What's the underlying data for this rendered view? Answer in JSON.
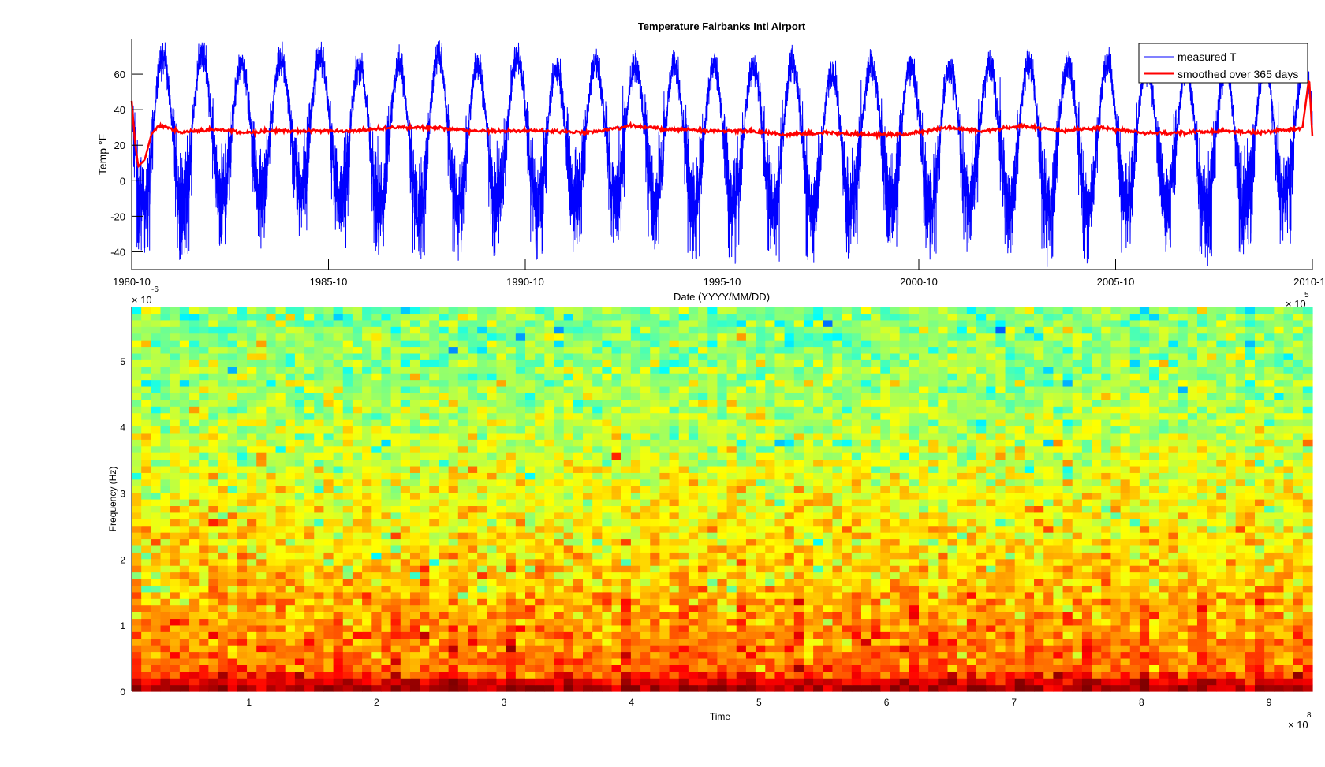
{
  "chart_data": [
    {
      "type": "line",
      "title": "Temperature Fairbanks Intl Airport",
      "xlabel": "Date (YYYY/MM/DD)",
      "ylabel": "Temp °F",
      "x_exponent_label": "× 10",
      "x_exponent": "5",
      "xlim": [
        "1980-10",
        "2010-10"
      ],
      "ylim": [
        -50,
        80
      ],
      "x_ticks": [
        "1980-10",
        "1985-10",
        "1990-10",
        "1995-10",
        "2000-10",
        "2005-10",
        "2010-10"
      ],
      "y_ticks": [
        -40,
        -20,
        0,
        20,
        40,
        60
      ],
      "y_tick_labels": [
        "-40",
        "-20",
        "0",
        "20",
        "40",
        "60"
      ],
      "grid": false,
      "legend_position": "top-right",
      "series": [
        {
          "name": "measured T",
          "color": "#0000ff",
          "summer_peaks": [
            72,
            78,
            78,
            72,
            74,
            76,
            72,
            72,
            78,
            72,
            76,
            70,
            72,
            70,
            72,
            72,
            70,
            72,
            68,
            70,
            72,
            70,
            72,
            74,
            72,
            74,
            72,
            68,
            72,
            70
          ],
          "winter_lows": [
            -40,
            -45,
            -42,
            -38,
            -30,
            -34,
            -40,
            -42,
            -46,
            -44,
            -38,
            -45,
            -36,
            -34,
            -42,
            -45,
            -40,
            -46,
            -48,
            -36,
            -40,
            -42,
            -38,
            -42,
            -44,
            -46,
            -40,
            -42,
            -44,
            -36
          ]
        },
        {
          "name": "smoothed over 365 days",
          "color": "#ff0000",
          "points": [
            [
              "1980-10",
              45
            ],
            [
              "1980-11",
              22
            ],
            [
              "1980-12",
              8
            ],
            [
              "1981-02",
              12
            ],
            [
              "1981-04",
              26
            ],
            [
              "1981-06",
              31
            ],
            [
              "1981-09",
              30
            ],
            [
              "1982-01",
              27
            ],
            [
              "1982-06",
              28
            ],
            [
              "1983-01",
              29
            ],
            [
              "1983-08",
              27
            ],
            [
              "1984-06",
              28
            ],
            [
              "1985-06",
              28
            ],
            [
              "1986-06",
              28
            ],
            [
              "1987-06",
              30
            ],
            [
              "1988-06",
              30
            ],
            [
              "1989-06",
              28
            ],
            [
              "1990-06",
              28
            ],
            [
              "1991-06",
              28
            ],
            [
              "1992-06",
              27
            ],
            [
              "1993-06",
              31
            ],
            [
              "1994-06",
              29
            ],
            [
              "1995-06",
              28
            ],
            [
              "1996-06",
              28
            ],
            [
              "1997-06",
              26
            ],
            [
              "1998-06",
              27
            ],
            [
              "1999-06",
              26
            ],
            [
              "2000-06",
              26
            ],
            [
              "2001-06",
              30
            ],
            [
              "2002-06",
              28
            ],
            [
              "2003-06",
              31
            ],
            [
              "2004-06",
              28
            ],
            [
              "2005-06",
              30
            ],
            [
              "2006-06",
              27
            ],
            [
              "2007-06",
              27
            ],
            [
              "2008-06",
              28
            ],
            [
              "2009-06",
              27
            ],
            [
              "2010-04",
              29
            ],
            [
              "2010-07",
              30
            ],
            [
              "2010-09",
              58
            ],
            [
              "2010-10",
              25
            ]
          ]
        }
      ]
    },
    {
      "type": "heatmap",
      "xlabel": "Time",
      "ylabel": "Frequency (Hz)",
      "x_exponent_label": "× 10",
      "x_exponent": "8",
      "y_exponent_label": "× 10",
      "y_exponent": "-6",
      "xlim": [
        0.08,
        9.34
      ],
      "ylim": [
        0,
        5.82
      ],
      "x_ticks": [
        1,
        2,
        3,
        4,
        5,
        6,
        7,
        8,
        9
      ],
      "x_tick_labels": [
        "1",
        "2",
        "3",
        "4",
        "5",
        "6",
        "7",
        "8",
        "9"
      ],
      "y_ticks": [
        0,
        1,
        2,
        3,
        4,
        5
      ],
      "y_tick_labels": [
        "0",
        "1",
        "2",
        "3",
        "4",
        "5"
      ],
      "colormap": "jet",
      "time_bins": 123,
      "freq_bins": 58,
      "mean_level_by_freq_bin": [
        0.95,
        0.9,
        0.82,
        0.77,
        0.76,
        0.75,
        0.75,
        0.74,
        0.73,
        0.72,
        0.72,
        0.71,
        0.7,
        0.7,
        0.69,
        0.68,
        0.68,
        0.67,
        0.67,
        0.66,
        0.66,
        0.65,
        0.65,
        0.64,
        0.64,
        0.63,
        0.63,
        0.62,
        0.62,
        0.61,
        0.61,
        0.6,
        0.6,
        0.59,
        0.59,
        0.58,
        0.58,
        0.57,
        0.57,
        0.56,
        0.56,
        0.55,
        0.55,
        0.55,
        0.54,
        0.54,
        0.54,
        0.53,
        0.53,
        0.53,
        0.52,
        0.52,
        0.52,
        0.52,
        0.51,
        0.51,
        0.51,
        0.51
      ]
    }
  ]
}
